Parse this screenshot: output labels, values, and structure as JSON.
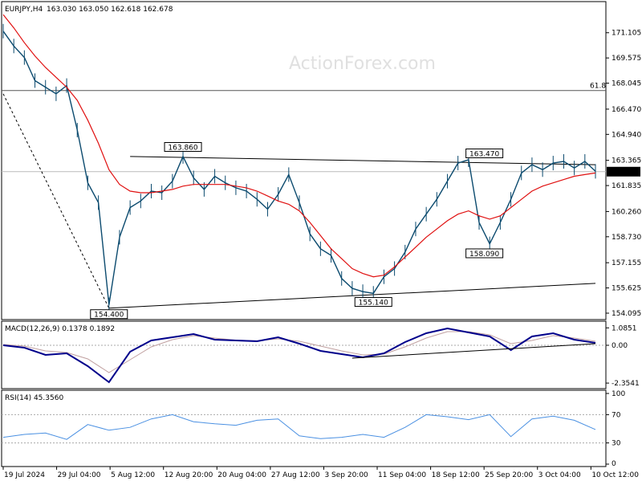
{
  "header": {
    "symbol": "EURJPY,H4",
    "ohlc": "163.030 163.050 162.618 162.678",
    "watermark": "ActionForex.com"
  },
  "colors": {
    "background": "#ffffff",
    "price_line": "#0b4a6e",
    "sma": "#e01010",
    "macd": "#00008b",
    "signal": "#c0a0a0",
    "rsi": "#4a90e2",
    "grid": "#d0d0d0",
    "axis": "#000000"
  },
  "chart_data": [
    {
      "type": "line",
      "panel": "price",
      "price_scale_labels": [
        "171.105",
        "169.575",
        "168.045",
        "166.470",
        "164.940",
        "163.365",
        "161.835",
        "160.260",
        "158.730",
        "157.155",
        "155.625",
        "154.095"
      ],
      "current_price_label": "162.678",
      "x_labels": [
        "19 Jul 2024",
        "29 Jul 04:00",
        "5 Aug 12:00",
        "12 Aug 20:00",
        "20 Aug 04:00",
        "27 Aug 12:00",
        "3 Sep 20:00",
        "11 Sep 04:00",
        "18 Sep 12:00",
        "25 Sep 20:00",
        "3 Oct 04:00",
        "10 Oct 12:00"
      ],
      "fib_label": "61.8",
      "fib_level": 167.6,
      "annotations": [
        {
          "text": "163.860",
          "x": 34,
          "y": 163.86
        },
        {
          "text": "154.400",
          "x": 20,
          "y": 154.4
        },
        {
          "text": "155.140",
          "x": 70,
          "y": 155.14
        },
        {
          "text": "163.470",
          "x": 91,
          "y": 163.47
        },
        {
          "text": "158.090",
          "x": 91,
          "y": 158.09
        }
      ],
      "x": [
        0,
        2,
        4,
        6,
        8,
        10,
        12,
        14,
        16,
        18,
        20,
        22,
        24,
        26,
        28,
        30,
        32,
        34,
        36,
        38,
        40,
        42,
        44,
        46,
        48,
        50,
        52,
        54,
        56,
        58,
        60,
        62,
        64,
        66,
        68,
        70,
        72,
        74,
        76,
        78,
        80,
        82,
        84,
        86,
        88,
        90,
        92,
        94,
        96,
        98,
        100,
        102,
        104,
        106,
        108,
        110,
        112
      ],
      "price": [
        171.2,
        170.3,
        169.6,
        168.2,
        167.8,
        167.4,
        167.9,
        165.2,
        162.0,
        160.8,
        154.6,
        158.7,
        160.5,
        160.9,
        161.5,
        161.4,
        162.1,
        163.6,
        162.3,
        161.6,
        162.4,
        162.0,
        161.7,
        161.5,
        161.0,
        160.4,
        161.3,
        162.5,
        160.8,
        158.9,
        158.0,
        157.6,
        156.2,
        155.6,
        155.4,
        155.3,
        156.3,
        156.8,
        157.8,
        159.2,
        160.1,
        161.0,
        162.1,
        163.2,
        163.4,
        159.6,
        158.3,
        159.6,
        161.0,
        162.6,
        163.1,
        162.8,
        163.2,
        163.3,
        162.9,
        163.3,
        162.7
      ],
      "sma": [
        172.2,
        171.4,
        170.5,
        169.7,
        169.0,
        168.4,
        167.8,
        167.0,
        165.8,
        164.4,
        162.8,
        161.9,
        161.5,
        161.4,
        161.4,
        161.5,
        161.6,
        161.8,
        161.9,
        161.9,
        161.9,
        161.9,
        161.8,
        161.7,
        161.5,
        161.2,
        160.9,
        160.7,
        160.3,
        159.6,
        158.8,
        158.0,
        157.4,
        156.8,
        156.5,
        156.3,
        156.4,
        156.9,
        157.5,
        158.1,
        158.7,
        159.2,
        159.7,
        160.1,
        160.3,
        160.0,
        159.8,
        160.0,
        160.5,
        161.0,
        161.5,
        161.8,
        162.0,
        162.2,
        162.4,
        162.5,
        162.6
      ],
      "upper_trendline": [
        [
          24,
          163.6
        ],
        [
          112,
          163.1
        ]
      ],
      "lower_trendline": [
        [
          20,
          154.4
        ],
        [
          112,
          155.9
        ]
      ],
      "dashed_line": [
        [
          0,
          167.4
        ],
        [
          20,
          154.4
        ]
      ],
      "ylim": [
        153.9,
        172.7
      ]
    },
    {
      "type": "line",
      "panel": "macd",
      "title": "MACD(12,26,9) 0.1378 0.1892",
      "scale_labels": [
        "1.0851",
        "0.00",
        "-2.3541"
      ],
      "x": [
        0,
        4,
        8,
        12,
        16,
        20,
        24,
        28,
        32,
        36,
        40,
        44,
        48,
        52,
        56,
        60,
        64,
        68,
        72,
        76,
        80,
        84,
        88,
        92,
        96,
        100,
        104,
        108,
        112
      ],
      "macd": [
        0.0,
        -0.15,
        -0.6,
        -0.5,
        -1.3,
        -2.3,
        -0.4,
        0.3,
        0.5,
        0.7,
        0.35,
        0.3,
        0.25,
        0.5,
        0.1,
        -0.35,
        -0.55,
        -0.75,
        -0.5,
        0.2,
        0.75,
        1.05,
        0.8,
        0.55,
        -0.3,
        0.55,
        0.75,
        0.35,
        0.15
      ],
      "signal": [
        0.05,
        -0.05,
        -0.35,
        -0.45,
        -0.85,
        -1.7,
        -0.9,
        -0.1,
        0.35,
        0.6,
        0.45,
        0.32,
        0.28,
        0.4,
        0.25,
        -0.05,
        -0.35,
        -0.6,
        -0.55,
        -0.1,
        0.45,
        0.85,
        0.85,
        0.65,
        0.1,
        0.3,
        0.6,
        0.45,
        0.25
      ],
      "trendline": [
        [
          66,
          -0.8
        ],
        [
          112,
          0.1
        ]
      ],
      "ylim": [
        -2.6,
        1.3
      ]
    },
    {
      "type": "line",
      "panel": "rsi",
      "title": "RSI(14) 45.3560",
      "scale_labels": [
        "100",
        "70",
        "30",
        "0"
      ],
      "x": [
        0,
        4,
        8,
        12,
        16,
        20,
        24,
        28,
        32,
        36,
        40,
        44,
        48,
        52,
        56,
        60,
        64,
        68,
        72,
        76,
        80,
        84,
        88,
        92,
        96,
        100,
        104,
        108,
        112
      ],
      "rsi": [
        38,
        42,
        44,
        35,
        56,
        48,
        52,
        64,
        70,
        60,
        57,
        55,
        62,
        64,
        40,
        36,
        38,
        42,
        38,
        52,
        70,
        67,
        63,
        70,
        39,
        64,
        68,
        62,
        49
      ],
      "levels": [
        70,
        30
      ],
      "ylim": [
        0,
        100
      ]
    }
  ]
}
